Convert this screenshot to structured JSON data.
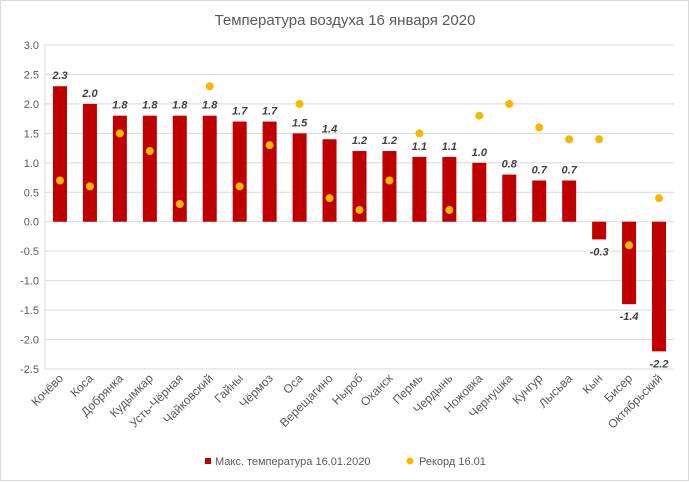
{
  "chart_data": {
    "type": "bar",
    "title": "Температура воздуха  16 января 2020",
    "categories": [
      "Кочёво",
      "Коса",
      "Добрянка",
      "Кудымкар",
      "Усть-Чёрная",
      "Чайковский",
      "Гайны",
      "Чёрмоз",
      "Оса",
      "Верещагино",
      "Ныроб",
      "Оханск",
      "Пермь",
      "Чердынь",
      "Ножовка",
      "Чернушка",
      "Кунгур",
      "Лысьва",
      "Кын",
      "Бисер",
      "Октябрьский"
    ],
    "series": [
      {
        "name": "Макс. температура 16.01.2020",
        "type": "bar",
        "color": "#c00000",
        "values": [
          2.3,
          2.0,
          1.8,
          1.8,
          1.8,
          1.8,
          1.7,
          1.7,
          1.5,
          1.4,
          1.2,
          1.2,
          1.1,
          1.1,
          1.0,
          0.8,
          0.7,
          0.7,
          -0.3,
          -1.4,
          -2.2
        ],
        "labels": [
          "2.3",
          "2.0",
          "1.8",
          "1.8",
          "1.8",
          "1.8",
          "1.7",
          "1.7",
          "1.5",
          "1.4",
          "1.2",
          "1.2",
          "1.1",
          "1.1",
          "1.0",
          "0.8",
          "0.7",
          "0.7",
          "-0.3",
          "-1.4",
          "-2.2"
        ]
      },
      {
        "name": "Рекорд 16.01",
        "type": "scatter",
        "color": "#f5b800",
        "values": [
          0.7,
          0.6,
          1.5,
          1.2,
          0.3,
          2.3,
          0.6,
          1.3,
          2.0,
          0.4,
          0.2,
          0.7,
          1.5,
          0.2,
          1.8,
          2.0,
          1.6,
          1.4,
          1.4,
          -0.4,
          0.4
        ]
      }
    ],
    "ylim": [
      -2.5,
      3.0
    ],
    "yticks": [
      3.0,
      2.5,
      2.0,
      1.5,
      1.0,
      0.5,
      0.0,
      -0.5,
      -1.0,
      -1.5,
      -2.0,
      -2.5
    ],
    "ytick_labels": [
      "3.0",
      "2.5",
      "2.0",
      "1.5",
      "1.0",
      "0.5",
      "0.0",
      "-0.5",
      "-1.0",
      "-1.5",
      "-2.0",
      "-2.5"
    ],
    "grid": true,
    "legend_position": "bottom",
    "xlabel": "",
    "ylabel": ""
  }
}
